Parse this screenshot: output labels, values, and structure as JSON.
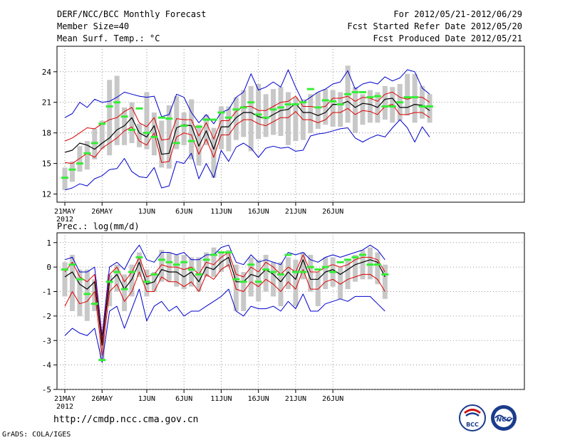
{
  "header": {
    "title": "DERF/NCC/BCC Monthly Forecast",
    "member_size": "Member Size=40",
    "variable_top": "Mean Surf. Temp.: °C",
    "period": "For 2012/05/21-2012/06/29",
    "fcst_started": "Fcst Started Refer Date 2012/05/20",
    "fcst_produced": "Fcst Produced Date 2012/05/21"
  },
  "footer": {
    "url": "http://cmdp.ncc.cma.gov.cn",
    "credit": "GrADS: COLA/IGES",
    "logo_bcc": "BCC",
    "logo_ncc": "NCC"
  },
  "colors": {
    "ensemble_mean": "#000000",
    "spread": "#dd0000",
    "extremes": "#0000cc",
    "box": "#c8c8c8",
    "median": "#33ee33"
  },
  "chart_data": [
    {
      "type": "line",
      "title": "Mean Surf. Temp.: °C",
      "xlabel": "",
      "ylabel": "",
      "ylim": [
        11.2,
        26.5
      ],
      "yticks": [
        12,
        15,
        18,
        21,
        24
      ],
      "ytick_labels": [
        "12",
        "15",
        "18",
        "21",
        "24"
      ],
      "xtick_days": [
        0,
        5,
        11,
        16,
        21,
        26,
        31,
        36
      ],
      "xtick_labels": [
        "21MAY",
        "26MAY",
        "1JUN",
        "6JUN",
        "11JUN",
        "16JUN",
        "21JUN",
        "26JUN"
      ],
      "xtick_year": "2012",
      "series": [
        {
          "name": "ensemble-mean",
          "values": [
            16.1,
            16.3,
            17.0,
            16.8,
            16.4,
            17.0,
            17.5,
            18.3,
            18.7,
            19.5,
            18.0,
            17.6,
            18.7,
            15.9,
            16.0,
            18.5,
            18.8,
            18.7,
            16.7,
            18.2,
            16.4,
            18.6,
            18.6,
            19.5,
            20.0,
            20.0,
            19.6,
            19.4,
            19.8,
            20.2,
            20.3,
            20.9,
            20.0,
            20.0,
            19.7,
            20.0,
            20.8,
            20.8,
            21.1,
            20.5,
            20.9,
            20.8,
            20.5,
            21.3,
            21.4,
            20.5,
            20.5,
            20.8,
            20.7,
            20.2
          ]
        },
        {
          "name": "upper-spread",
          "values": [
            17.2,
            17.5,
            18.0,
            18.5,
            18.4,
            18.9,
            19.3,
            19.5,
            20.1,
            20.5,
            19.0,
            18.6,
            19.5,
            17.3,
            17.4,
            19.4,
            19.3,
            19.3,
            17.7,
            19.0,
            17.4,
            19.2,
            19.2,
            20.1,
            20.6,
            20.6,
            20.2,
            20.2,
            20.6,
            21.0,
            21.1,
            21.6,
            20.6,
            20.6,
            20.5,
            20.6,
            21.4,
            21.4,
            21.6,
            21.1,
            21.5,
            21.4,
            21.1,
            21.8,
            22.0,
            21.5,
            21.3,
            21.5,
            21.5,
            21.0
          ]
        },
        {
          "name": "lower-spread",
          "values": [
            15.1,
            15.0,
            15.5,
            16.0,
            15.6,
            16.5,
            17.0,
            17.5,
            18.2,
            18.6,
            17.2,
            16.8,
            18.0,
            15.1,
            15.2,
            17.6,
            18.0,
            17.8,
            15.9,
            17.4,
            15.6,
            17.8,
            17.8,
            18.8,
            19.3,
            19.3,
            18.9,
            18.7,
            19.1,
            19.5,
            19.5,
            20.1,
            19.3,
            19.3,
            19.0,
            19.3,
            20.0,
            20.0,
            20.4,
            19.8,
            20.2,
            20.1,
            19.8,
            20.6,
            20.8,
            19.8,
            19.8,
            20.0,
            20.0,
            19.5
          ]
        },
        {
          "name": "ensemble-max",
          "values": [
            19.5,
            19.9,
            21.0,
            20.5,
            21.3,
            21.0,
            21.1,
            21.5,
            22.0,
            21.8,
            21.6,
            21.5,
            21.6,
            19.6,
            19.8,
            21.8,
            21.5,
            20.0,
            19.0,
            19.8,
            18.9,
            20.0,
            20.3,
            21.5,
            22.0,
            23.8,
            22.2,
            22.5,
            23.0,
            22.5,
            24.2,
            22.5,
            21.0,
            21.5,
            22.0,
            22.3,
            22.8,
            23.0,
            24.1,
            22.3,
            22.8,
            23.0,
            22.8,
            23.5,
            23.1,
            23.4,
            24.2,
            24.0,
            22.4,
            21.8
          ]
        },
        {
          "name": "ensemble-min",
          "values": [
            12.4,
            12.6,
            13.0,
            12.8,
            13.5,
            13.8,
            14.4,
            14.5,
            15.5,
            14.2,
            13.7,
            13.6,
            14.6,
            12.6,
            12.8,
            15.2,
            15.0,
            16.0,
            13.5,
            15.0,
            13.6,
            16.3,
            15.2,
            16.6,
            17.0,
            16.5,
            15.6,
            16.5,
            16.7,
            16.5,
            16.6,
            16.2,
            16.3,
            17.7,
            17.9,
            18.0,
            18.2,
            18.4,
            18.5,
            17.5,
            17.1,
            17.5,
            17.8,
            17.6,
            18.5,
            19.3,
            18.5,
            17.1,
            18.6,
            17.6
          ]
        },
        {
          "name": "box-upper",
          "values": [
            14.6,
            15.2,
            16.7,
            17.2,
            18.4,
            19.2,
            23.2,
            23.6,
            20.5,
            21.0,
            18.9,
            22.0,
            20.0,
            19.2,
            20.7,
            21.6,
            20.0,
            21.3,
            18.8,
            19.8,
            18.5,
            20.6,
            20.6,
            21.5,
            22.2,
            22.6,
            22.8,
            21.8,
            22.3,
            22.5,
            22.0,
            21.5,
            21.3,
            21.8,
            22.0,
            22.3,
            22.2,
            22.0,
            24.6,
            22.5,
            21.8,
            22.2,
            22.0,
            22.6,
            22.5,
            22.8,
            23.8,
            23.8,
            22.6,
            21.8
          ]
        },
        {
          "name": "box-lower",
          "values": [
            12.4,
            13.2,
            14.2,
            14.4,
            15.4,
            16.4,
            15.8,
            16.8,
            16.8,
            17.0,
            16.6,
            16.4,
            15.8,
            14.6,
            14.5,
            16.4,
            16.8,
            15.4,
            14.8,
            16.8,
            13.6,
            16.4,
            16.2,
            17.3,
            17.6,
            16.2,
            17.4,
            17.6,
            17.8,
            17.7,
            16.8,
            17.2,
            17.3,
            18.0,
            18.4,
            18.8,
            18.6,
            18.6,
            19.0,
            18.0,
            18.8,
            19.0,
            19.0,
            19.3,
            19.0,
            19.2,
            19.7,
            19.0,
            19.4,
            19.0
          ]
        },
        {
          "name": "box-median",
          "values": [
            13.6,
            14.4,
            15.0,
            16.0,
            17.0,
            18.9,
            20.6,
            21.0,
            19.6,
            18.3,
            20.4,
            18.0,
            17.6,
            19.5,
            19.4,
            17.0,
            18.7,
            17.2,
            18.6,
            19.3,
            19.3,
            20.0,
            19.5,
            20.3,
            20.5,
            21.0,
            19.8,
            19.5,
            20.3,
            20.5,
            20.8,
            20.8,
            21.0,
            22.3,
            20.5,
            21.2,
            21.1,
            20.8,
            21.8,
            22.0,
            22.0,
            21.5,
            21.6,
            20.6,
            20.6,
            21.0,
            21.5,
            21.5,
            20.6,
            20.6
          ]
        }
      ]
    },
    {
      "type": "line",
      "title": "Prec.: log(mm/d)",
      "xlabel": "",
      "ylabel": "",
      "ylim": [
        -5,
        1.4
      ],
      "yticks": [
        -5,
        -4,
        -3,
        -2,
        -1,
        0,
        1
      ],
      "ytick_labels": [
        "-5",
        "-4",
        "-3",
        "-2",
        "-1",
        "0",
        "1"
      ],
      "xtick_days": [
        0,
        5,
        11,
        16,
        21,
        26,
        31,
        36
      ],
      "xtick_labels": [
        "21MAY",
        "26MAY",
        "1JUN",
        "6JUN",
        "11JUN",
        "16JUN",
        "21JUN",
        "26JUN"
      ],
      "xtick_year": "2012",
      "series": [
        {
          "name": "ensemble-mean",
          "values": [
            -0.4,
            -0.2,
            -0.7,
            -0.9,
            -0.6,
            -3.2,
            -0.6,
            -0.3,
            -0.9,
            -0.5,
            0.2,
            -0.7,
            -0.6,
            -0.1,
            -0.2,
            -0.2,
            -0.4,
            -0.2,
            -0.6,
            0.0,
            -0.1,
            0.2,
            0.4,
            -0.6,
            -0.6,
            -0.3,
            -0.4,
            -0.1,
            -0.3,
            -0.6,
            -0.2,
            -0.5,
            0.3,
            -0.5,
            -0.5,
            -0.2,
            -0.1,
            -0.3,
            -0.1,
            0.1,
            0.2,
            0.3,
            0.2,
            -0.4
          ]
        },
        {
          "name": "upper-spread",
          "values": [
            -0.2,
            0.2,
            -0.4,
            -0.6,
            -0.3,
            -3.0,
            -0.3,
            0.0,
            -0.6,
            -0.2,
            0.4,
            -0.4,
            -0.3,
            0.1,
            0.0,
            0.0,
            -0.1,
            0.0,
            -0.3,
            0.2,
            0.1,
            0.4,
            0.6,
            -0.3,
            -0.4,
            0.0,
            -0.2,
            0.2,
            0.0,
            -0.3,
            0.0,
            -0.2,
            0.5,
            -0.2,
            -0.2,
            0.0,
            0.1,
            0.0,
            0.1,
            0.3,
            0.4,
            0.4,
            0.3,
            -0.2
          ]
        },
        {
          "name": "lower-spread",
          "values": [
            -1.6,
            -1.0,
            -1.5,
            -1.4,
            -1.0,
            -3.6,
            -1.0,
            -0.7,
            -1.4,
            -1.0,
            -0.2,
            -1.0,
            -1.0,
            -0.4,
            -0.6,
            -0.6,
            -0.8,
            -0.6,
            -1.0,
            -0.3,
            -0.5,
            -0.1,
            0.1,
            -0.9,
            -1.0,
            -0.6,
            -0.8,
            -0.5,
            -0.7,
            -1.0,
            -0.6,
            -0.9,
            -0.1,
            -0.9,
            -0.9,
            -0.6,
            -0.5,
            -0.7,
            -0.5,
            -0.4,
            -0.3,
            -0.3,
            -0.5,
            -1.0
          ]
        },
        {
          "name": "ensemble-max",
          "values": [
            0.3,
            0.4,
            -0.2,
            -0.2,
            0.0,
            -2.8,
            0.0,
            0.2,
            -0.1,
            0.5,
            0.9,
            0.3,
            0.2,
            0.6,
            0.6,
            0.5,
            0.6,
            0.3,
            0.3,
            0.5,
            0.5,
            0.8,
            0.9,
            0.2,
            0.1,
            0.5,
            0.2,
            0.3,
            0.2,
            0.1,
            0.6,
            0.5,
            0.6,
            0.3,
            0.2,
            0.4,
            0.5,
            0.4,
            0.5,
            0.6,
            0.7,
            0.9,
            0.7,
            0.3
          ]
        },
        {
          "name": "ensemble-min",
          "values": [
            -2.8,
            -2.5,
            -2.7,
            -2.8,
            -2.5,
            -3.9,
            -1.8,
            -1.6,
            -2.5,
            -1.7,
            -0.9,
            -2.2,
            -1.6,
            -1.4,
            -1.8,
            -1.6,
            -2.0,
            -1.8,
            -1.8,
            -1.6,
            -1.4,
            -1.2,
            -0.9,
            -1.8,
            -2.0,
            -1.6,
            -1.7,
            -1.7,
            -1.6,
            -1.8,
            -1.4,
            -1.7,
            -1.1,
            -1.8,
            -1.8,
            -1.5,
            -1.4,
            -1.3,
            -1.4,
            -1.2,
            -1.2,
            -1.2,
            -1.5,
            -1.8
          ]
        },
        {
          "name": "box-upper",
          "values": [
            0.2,
            0.5,
            -0.1,
            -0.1,
            -0.5,
            -2.8,
            -0.3,
            0.1,
            -0.3,
            0.1,
            0.6,
            -0.1,
            -0.2,
            0.7,
            0.6,
            0.5,
            0.5,
            0.4,
            0.4,
            0.6,
            0.8,
            0.6,
            0.7,
            0.1,
            -0.2,
            0.4,
            0.3,
            0.5,
            0.2,
            0.2,
            0.4,
            0.3,
            0.6,
            0.5,
            -0.2,
            0.4,
            0.4,
            0.0,
            0.3,
            0.5,
            0.7,
            0.8,
            0.6,
            0.1
          ]
        },
        {
          "name": "box-lower",
          "values": [
            -1.2,
            -1.8,
            -2.0,
            -2.2,
            -1.8,
            -3.8,
            -1.6,
            -1.0,
            -1.8,
            -1.2,
            -0.4,
            -1.2,
            -1.0,
            -0.6,
            -0.6,
            -0.8,
            -0.9,
            -0.8,
            -1.0,
            -0.4,
            -0.4,
            -0.2,
            0.0,
            -1.8,
            -1.8,
            -1.2,
            -1.4,
            -1.0,
            -1.2,
            -1.6,
            -0.9,
            -1.6,
            -0.5,
            -1.0,
            -1.6,
            -0.9,
            -0.8,
            -1.3,
            -0.9,
            -0.6,
            -0.5,
            -0.5,
            -0.7,
            -1.3
          ]
        },
        {
          "name": "box-median",
          "values": [
            -0.1,
            0.1,
            -0.5,
            -1.1,
            -1.5,
            -3.8,
            -0.6,
            -0.2,
            -0.9,
            -0.2,
            0.4,
            -0.6,
            -0.3,
            0.3,
            0.2,
            0.1,
            0.2,
            -0.1,
            -0.3,
            0.3,
            0.5,
            0.6,
            0.6,
            -0.5,
            -0.6,
            0.1,
            -0.6,
            -0.1,
            -0.2,
            -0.3,
            0.5,
            -0.2,
            -0.2,
            0.0,
            -0.1,
            0.0,
            -0.2,
            0.2,
            0.3,
            0.4,
            0.5,
            0.1,
            0.1,
            -0.3
          ]
        }
      ]
    }
  ]
}
